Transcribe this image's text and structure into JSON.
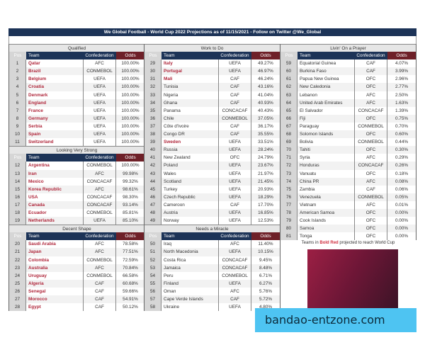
{
  "title": "We Global Football - World Cup 2022 Projections as of 11/15/2021 - Follow on Twitter @We_Global",
  "columns": {
    "pos": "Pos",
    "team": "Team",
    "confederation": "Confederation",
    "odds": "Odds"
  },
  "colors": {
    "header": "#1c3357",
    "odds_header": "#6e2028",
    "bold_red": "#b0283c"
  },
  "sections": [
    {
      "name": "Qualified",
      "column": 0,
      "rows": [
        [
          "1",
          "Qatar",
          "AFC",
          "100.00%",
          true
        ],
        [
          "2",
          "Brazil",
          "CONMEBOL",
          "100.00%",
          true
        ],
        [
          "3",
          "Belgium",
          "UEFA",
          "100.00%",
          true
        ],
        [
          "4",
          "Croatia",
          "UEFA",
          "100.00%",
          true
        ],
        [
          "5",
          "Denmark",
          "UEFA",
          "100.00%",
          true
        ],
        [
          "6",
          "England",
          "UEFA",
          "100.00%",
          true
        ],
        [
          "7",
          "France",
          "UEFA",
          "100.00%",
          true
        ],
        [
          "8",
          "Germany",
          "UEFA",
          "100.00%",
          true
        ],
        [
          "9",
          "Serbia",
          "UEFA",
          "100.00%",
          true
        ],
        [
          "10",
          "Spain",
          "UEFA",
          "100.00%",
          true
        ],
        [
          "11",
          "Switzerland",
          "UEFA",
          "100.00%",
          true
        ]
      ]
    },
    {
      "name": "Looking Very Strong",
      "column": 0,
      "rows": [
        [
          "12",
          "Argentina",
          "CONMEBOL",
          "100.00%",
          true
        ],
        [
          "13",
          "Iran",
          "AFC",
          "99.98%",
          true
        ],
        [
          "14",
          "Mexico",
          "CONCACAF",
          "99.32%",
          true
        ],
        [
          "15",
          "Korea Republic",
          "AFC",
          "98.61%",
          true
        ],
        [
          "16",
          "USA",
          "CONCACAF",
          "98.30%",
          true
        ],
        [
          "17",
          "Canada",
          "CONCACAF",
          "93.14%",
          true
        ],
        [
          "18",
          "Ecuador",
          "CONMEBOL",
          "85.81%",
          true
        ],
        [
          "19",
          "Netherlands",
          "UEFA",
          "85.10%",
          true
        ]
      ]
    },
    {
      "name": "Decent Shape",
      "column": 0,
      "rows": [
        [
          "20",
          "Saudi Arabia",
          "AFC",
          "78.58%",
          true
        ],
        [
          "21",
          "Japan",
          "AFC",
          "77.51%",
          true
        ],
        [
          "22",
          "Colombia",
          "CONMEBOL",
          "72.59%",
          true
        ],
        [
          "23",
          "Australia",
          "AFC",
          "70.84%",
          true
        ],
        [
          "24",
          "Uruguay",
          "CONMEBOL",
          "66.58%",
          true
        ],
        [
          "25",
          "Algeria",
          "CAF",
          "60.68%",
          true
        ],
        [
          "26",
          "Senegal",
          "CAF",
          "59.66%",
          true
        ],
        [
          "27",
          "Morocco",
          "CAF",
          "54.91%",
          true
        ],
        [
          "28",
          "Egypt",
          "CAF",
          "50.12%",
          true
        ]
      ]
    },
    {
      "name": "Work to Do",
      "column": 1,
      "rows": [
        [
          "29",
          "Italy",
          "UEFA",
          "49.27%",
          true
        ],
        [
          "30",
          "Portugal",
          "UEFA",
          "46.97%",
          true
        ],
        [
          "31",
          "Mali",
          "CAF",
          "46.24%",
          true
        ],
        [
          "32",
          "Tunisia",
          "CAF",
          "43.16%",
          false
        ],
        [
          "33",
          "Nigeria",
          "CAF",
          "41.04%",
          false
        ],
        [
          "34",
          "Ghana",
          "CAF",
          "40.93%",
          false
        ],
        [
          "35",
          "Panama",
          "CONCACAF",
          "40.43%",
          false
        ],
        [
          "36",
          "Chile",
          "CONMEBOL",
          "37.05%",
          false
        ],
        [
          "37",
          "Côte d'Ivoire",
          "CAF",
          "36.17%",
          false
        ],
        [
          "38",
          "Congo DR",
          "CAF",
          "35.55%",
          false
        ],
        [
          "39",
          "Sweden",
          "UEFA",
          "33.51%",
          true
        ],
        [
          "40",
          "Russia",
          "UEFA",
          "28.24%",
          false
        ],
        [
          "41",
          "New Zealand",
          "OFC",
          "24.79%",
          false
        ],
        [
          "42",
          "Poland",
          "UEFA",
          "23.67%",
          false
        ],
        [
          "43",
          "Wales",
          "UEFA",
          "21.97%",
          false
        ],
        [
          "44",
          "Scotland",
          "UEFA",
          "21.45%",
          false
        ],
        [
          "45",
          "Turkey",
          "UEFA",
          "20.93%",
          false
        ],
        [
          "46",
          "Czech Republic",
          "UEFA",
          "18.29%",
          false
        ],
        [
          "47",
          "Cameroon",
          "CAF",
          "17.70%",
          false
        ],
        [
          "48",
          "Austria",
          "UEFA",
          "16.85%",
          false
        ],
        [
          "49",
          "Norway",
          "UEFA",
          "12.53%",
          false
        ]
      ]
    },
    {
      "name": "Needs a Miracle",
      "column": 1,
      "rows": [
        [
          "50",
          "Iraq",
          "AFC",
          "11.40%",
          false
        ],
        [
          "51",
          "North Macedonia",
          "UEFA",
          "10.15%",
          false
        ],
        [
          "52",
          "Costa Rica",
          "CONCACAF",
          "9.45%",
          false
        ],
        [
          "53",
          "Jamaica",
          "CONCACAF",
          "8.48%",
          false
        ],
        [
          "54",
          "Peru",
          "CONMEBOL",
          "6.71%",
          false
        ],
        [
          "55",
          "Finland",
          "UEFA",
          "6.27%",
          false
        ],
        [
          "56",
          "Oman",
          "AFC",
          "5.76%",
          false
        ],
        [
          "57",
          "Cape Verde Islands",
          "CAF",
          "5.72%",
          false
        ],
        [
          "58",
          "Ukraine",
          "UEFA",
          "4.80%",
          false
        ]
      ]
    },
    {
      "name": "Livin' On a Prayer",
      "column": 2,
      "rows": [
        [
          "59",
          "Equatorial Guinea",
          "CAF",
          "4.07%",
          false
        ],
        [
          "60",
          "Burkina Faso",
          "CAF",
          "3.99%",
          false
        ],
        [
          "61",
          "Papua New Guinea",
          "OFC",
          "2.96%",
          false
        ],
        [
          "62",
          "New Caledonia",
          "OFC",
          "2.77%",
          false
        ],
        [
          "63",
          "Lebanon",
          "AFC",
          "2.50%",
          false
        ],
        [
          "64",
          "United Arab Emirates",
          "AFC",
          "1.63%",
          false
        ],
        [
          "65",
          "El Salvador",
          "CONCACAF",
          "1.39%",
          false
        ],
        [
          "66",
          "Fiji",
          "OFC",
          "0.75%",
          false
        ],
        [
          "67",
          "Paraguay",
          "CONMEBOL",
          "0.70%",
          false
        ],
        [
          "68",
          "Solomon Islands",
          "OFC",
          "0.60%",
          false
        ],
        [
          "69",
          "Bolivia",
          "CONMEBOL",
          "0.44%",
          false
        ],
        [
          "70",
          "Tahiti",
          "OFC",
          "0.30%",
          false
        ],
        [
          "71",
          "Syria",
          "AFC",
          "0.29%",
          false
        ],
        [
          "72",
          "Honduras",
          "CONCACAF",
          "0.26%",
          false
        ],
        [
          "73",
          "Vanuatu",
          "OFC",
          "0.18%",
          false
        ],
        [
          "74",
          "China PR",
          "AFC",
          "0.08%",
          false
        ],
        [
          "75",
          "Zambia",
          "CAF",
          "0.06%",
          false
        ],
        [
          "76",
          "Venezuela",
          "CONMEBOL",
          "0.05%",
          false
        ],
        [
          "77",
          "Vietnam",
          "AFC",
          "0.01%",
          false
        ],
        [
          "78",
          "American Samoa",
          "OFC",
          "0.00%",
          false
        ],
        [
          "79",
          "Cook Islands",
          "OFC",
          "0.00%",
          false
        ],
        [
          "80",
          "Samoa",
          "OFC",
          "0.00%",
          false
        ],
        [
          "81",
          "Tonga",
          "OFC",
          "0.00%",
          false
        ]
      ]
    }
  ],
  "caption": {
    "before": "Teams in ",
    "highlight": "Bold Red",
    "after": " projected to reach World Cup"
  },
  "watermark": "bandao-entzone.com"
}
